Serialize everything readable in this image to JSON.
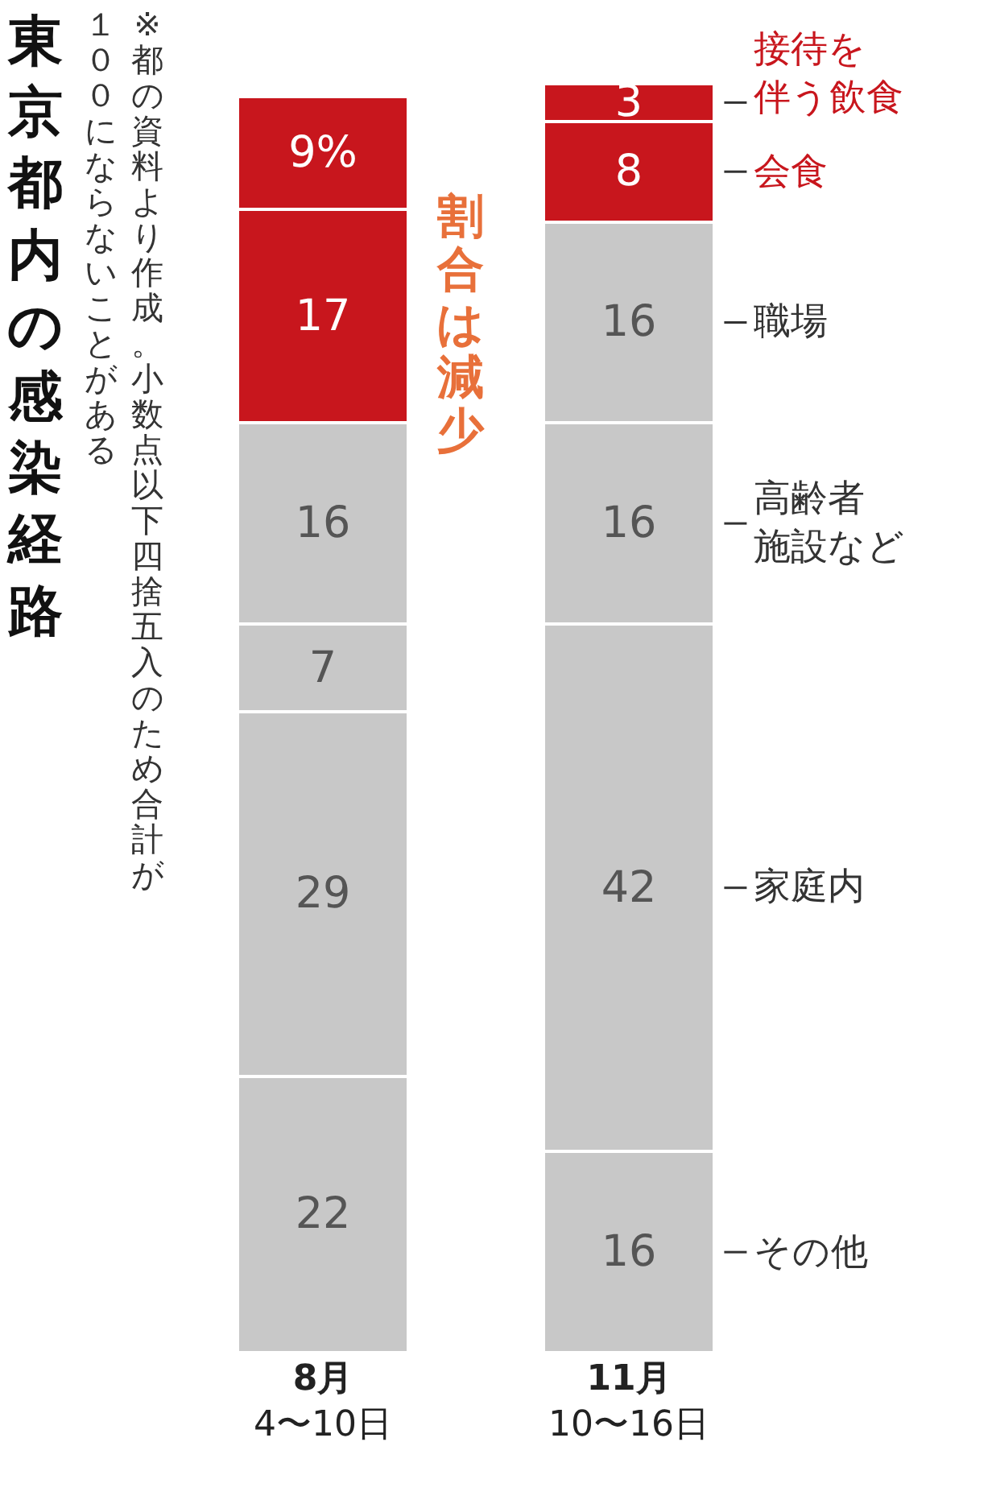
{
  "chart_data": {
    "type": "bar",
    "stacked": true,
    "title": "東京都内の感染経路",
    "categories": [
      "8月\n4〜10日",
      "11月\n10〜16日"
    ],
    "series": [
      {
        "name": "その他",
        "color": "#c8c8c8",
        "values": [
          22,
          16
        ]
      },
      {
        "name": "家庭内",
        "color": "#c8c8c8",
        "values": [
          29,
          42
        ]
      },
      {
        "name": "高齢者施設など",
        "color": "#c8c8c8",
        "values": [
          7,
          16
        ]
      },
      {
        "name": "職場",
        "color": "#c8c8c8",
        "values": [
          16,
          16
        ]
      },
      {
        "name": "会食",
        "color": "#c8161d",
        "values": [
          17,
          8
        ]
      },
      {
        "name": "接待を伴う飲食",
        "color": "#c8161d",
        "values": [
          9,
          3
        ],
        "value_labels": [
          "9%",
          "3"
        ]
      }
    ],
    "data_labels": true,
    "annotations": [
      "※都の資料より作成。小数点以下四捨五入のため合計が１００にならないことがある",
      "割合は減少"
    ],
    "tick_labels": "x",
    "legend": false
  }
}
